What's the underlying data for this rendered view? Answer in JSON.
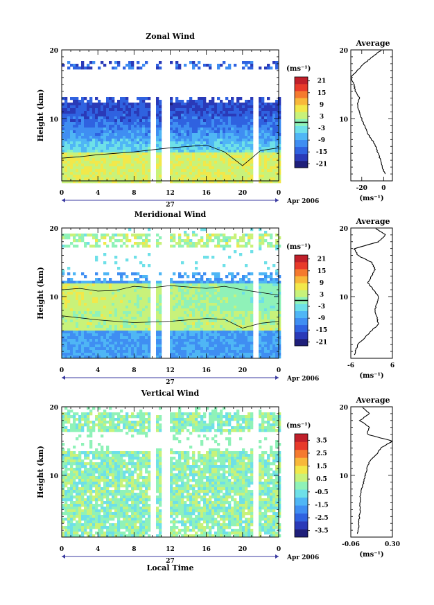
{
  "colormap": [
    "#1f1f7a",
    "#2a3ab8",
    "#2f62e0",
    "#3f8ef2",
    "#4fb6f5",
    "#6ee0e8",
    "#8ff2b8",
    "#c8f27a",
    "#f2e84a",
    "#f8b83a",
    "#f57a2f",
    "#e83a2a",
    "#c01f2a"
  ],
  "chart_data": [
    {
      "type": "heatmap",
      "id": "zonal",
      "title": "Zonal Wind",
      "ylabel": "Height (km)",
      "xlabel": "",
      "xlim": [
        0,
        24
      ],
      "ylim": [
        1,
        20
      ],
      "xticks": [
        "0",
        "4",
        "8",
        "12",
        "16",
        "20",
        "0"
      ],
      "xtick_values": [
        0,
        4,
        8,
        12,
        16,
        20,
        24
      ],
      "yticks": [
        10,
        20
      ],
      "day_label": "27",
      "date_label": "Apr 2006",
      "gaps": [
        [
          9.7,
          10.5
        ],
        [
          11.0,
          11.9
        ],
        [
          21.3,
          21.7
        ]
      ],
      "profile": {
        "heights": [
          2,
          6,
          8,
          10,
          12,
          13,
          14,
          15,
          16,
          18,
          20
        ],
        "values": [
          1,
          -7,
          -15,
          -20,
          -24,
          -22,
          -26,
          -27,
          -30,
          -18,
          -2
        ]
      },
      "contour_height": [
        4.3,
        4.5,
        4.8,
        5.0,
        5.2,
        5.5,
        5.8,
        6.0,
        6.2,
        5.2,
        3.2,
        5.4,
        5.8
      ],
      "colorbar": {
        "label": "(ms⁻¹)",
        "vmin": -23,
        "vmax": 23,
        "ticks": [
          "21",
          "15",
          "9",
          "3",
          "-3",
          "-9",
          "-15",
          "-21"
        ],
        "contour_level": 0
      },
      "avg": {
        "title": "Average",
        "xlim": [
          -30,
          8
        ],
        "xticks": [
          "-20",
          "0"
        ],
        "xtick_values": [
          -20,
          0
        ],
        "yticks": [
          10,
          20
        ],
        "unit": "(ms⁻¹)"
      }
    },
    {
      "type": "heatmap",
      "id": "meridional",
      "title": "Meridional Wind",
      "ylabel": "Height (km)",
      "xlabel": "",
      "xlim": [
        0,
        24
      ],
      "ylim": [
        1,
        20
      ],
      "xticks": [
        "0",
        "4",
        "8",
        "12",
        "16",
        "20",
        "0"
      ],
      "xtick_values": [
        0,
        4,
        8,
        12,
        16,
        20,
        24
      ],
      "yticks": [
        10,
        20
      ],
      "day_label": "27",
      "date_label": "Apr 2006",
      "gaps": [
        [
          9.7,
          10.5
        ],
        [
          11.0,
          11.9
        ],
        [
          21.3,
          21.7
        ]
      ],
      "profile": {
        "heights": [
          1.5,
          3,
          5,
          6,
          8,
          10,
          12,
          14,
          15,
          16,
          17,
          18,
          19,
          20
        ],
        "values": [
          -5,
          -4,
          0,
          2,
          1,
          2,
          -1,
          1,
          0,
          -4,
          -5,
          2,
          4,
          1
        ]
      },
      "colorbar": {
        "label": "(ms⁻¹)",
        "vmin": -23,
        "vmax": 23,
        "ticks": [
          "21",
          "15",
          "9",
          "3",
          "-3",
          "-9",
          "-15",
          "-21"
        ],
        "contour_level": 0
      },
      "avg": {
        "title": "Average",
        "xlim": [
          -6,
          6
        ],
        "xticks": [
          "-6",
          "6"
        ],
        "xtick_values": [
          -6,
          6
        ],
        "yticks": [
          10,
          20
        ],
        "unit": "(ms⁻¹)"
      }
    },
    {
      "type": "heatmap",
      "id": "vertical",
      "title": "Vertical Wind",
      "ylabel": "Height (km)",
      "xlabel": "Local Time",
      "xlim": [
        0,
        24
      ],
      "ylim": [
        1,
        20
      ],
      "xticks": [
        "0",
        "4",
        "8",
        "12",
        "16",
        "20",
        "0"
      ],
      "xtick_values": [
        0,
        4,
        8,
        12,
        16,
        20,
        24
      ],
      "yticks": [
        10,
        20
      ],
      "day_label": "27",
      "date_label": "Apr 2006",
      "gaps": [
        [
          9.7,
          10.5
        ],
        [
          11.0,
          11.9
        ],
        [
          21.3,
          21.7
        ]
      ],
      "profile": {
        "heights": [
          1.5,
          3,
          5,
          7,
          9,
          11,
          12,
          13,
          14,
          15,
          16,
          17,
          18,
          19,
          20
        ],
        "values": [
          0,
          0.01,
          0.02,
          0.02,
          0.05,
          0.08,
          0.1,
          0.16,
          0.2,
          0.3,
          0.08,
          0.1,
          0.02,
          0.1,
          0.04
        ]
      },
      "colorbar": {
        "label": "(ms⁻¹)",
        "vmin": -4,
        "vmax": 4,
        "ticks": [
          "3.5",
          "2.5",
          "1.5",
          "0.5",
          "-0.5",
          "-1.5",
          "-2.5",
          "-3.5"
        ]
      },
      "avg": {
        "title": "Average",
        "xlim": [
          -0.06,
          0.3
        ],
        "xticks": [
          "-0.06",
          "0.30"
        ],
        "xtick_values": [
          -0.06,
          0.3
        ],
        "yticks": [
          10,
          20
        ],
        "unit": "(ms⁻¹)"
      }
    }
  ]
}
